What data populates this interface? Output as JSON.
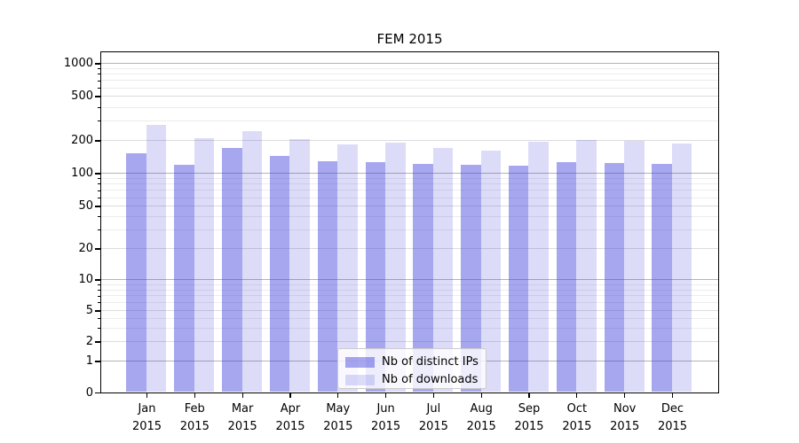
{
  "title": "FEM 2015",
  "chart_data": {
    "type": "bar",
    "title": "FEM 2015",
    "yscale": "symlog",
    "grid": true,
    "legend_position": "lower-center",
    "categories": [
      "Jan",
      "Feb",
      "Mar",
      "Apr",
      "May",
      "Jun",
      "Jul",
      "Aug",
      "Sep",
      "Oct",
      "Nov",
      "Dec"
    ],
    "category_year": "2015",
    "y_ticks": [
      0,
      1,
      2,
      5,
      10,
      20,
      50,
      100,
      200,
      500,
      1000
    ],
    "y_minor_ticks": [
      3,
      4,
      6,
      7,
      8,
      9,
      30,
      40,
      60,
      70,
      80,
      90,
      300,
      400,
      600,
      700,
      800,
      900
    ],
    "ylim": [
      0,
      1000
    ],
    "series": [
      {
        "name": "Nb of distinct IPs",
        "color": "rgba(60,60,220,0.45)",
        "values": [
          151,
          119,
          172,
          143,
          128,
          127,
          121,
          119,
          117,
          127,
          125,
          122
        ]
      },
      {
        "name": "Nb of downloads",
        "color": "rgba(60,60,220,0.18)",
        "values": [
          274,
          211,
          241,
          204,
          182,
          189,
          172,
          160,
          196,
          200,
          198,
          186
        ]
      }
    ]
  }
}
